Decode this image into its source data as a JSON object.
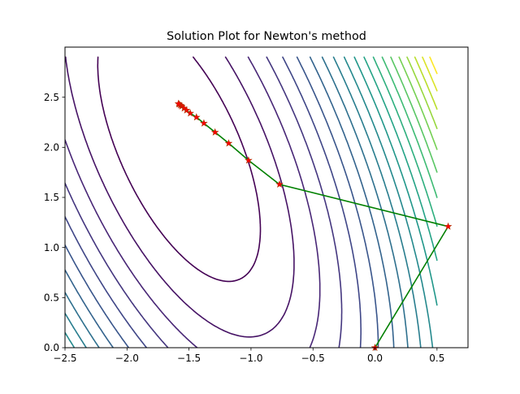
{
  "chart_data": {
    "type": "line",
    "title": "Solution Plot for Newton's method",
    "xlabel": "",
    "ylabel": "",
    "xlim": [
      -2.5,
      0.75
    ],
    "ylim": [
      0.0,
      3.0
    ],
    "x_ticks": [
      -2.5,
      -2.0,
      -1.5,
      -1.0,
      -0.5,
      0.0,
      0.5
    ],
    "x_tick_labels": [
      "−2.5",
      "−2.0",
      "−1.5",
      "−1.0",
      "−0.5",
      "0.0",
      "0.5"
    ],
    "y_ticks": [
      0.0,
      0.5,
      1.0,
      1.5,
      2.0,
      2.5
    ],
    "y_tick_labels": [
      "0.0",
      "0.5",
      "1.0",
      "1.5",
      "2.0",
      "2.5"
    ],
    "grid": false,
    "contour": {
      "x_range": [
        -2.5,
        0.5
      ],
      "y_range": [
        0.0,
        2.9
      ],
      "levels": 20,
      "colormap": "viridis"
    },
    "series": [
      {
        "x": [
          0.0,
          0.59,
          -0.77,
          -1.02,
          -1.18,
          -1.29,
          -1.38,
          -1.44,
          -1.49,
          -1.52,
          -1.54,
          -1.56,
          -1.57,
          -1.58,
          -1.585
        ],
        "y": [
          0.0,
          1.21,
          1.63,
          1.87,
          2.04,
          2.15,
          2.24,
          2.3,
          2.34,
          2.37,
          2.39,
          2.41,
          2.42,
          2.43,
          2.435
        ],
        "line_color": "#008000",
        "marker": "star",
        "marker_color": "#ff0000"
      }
    ]
  }
}
